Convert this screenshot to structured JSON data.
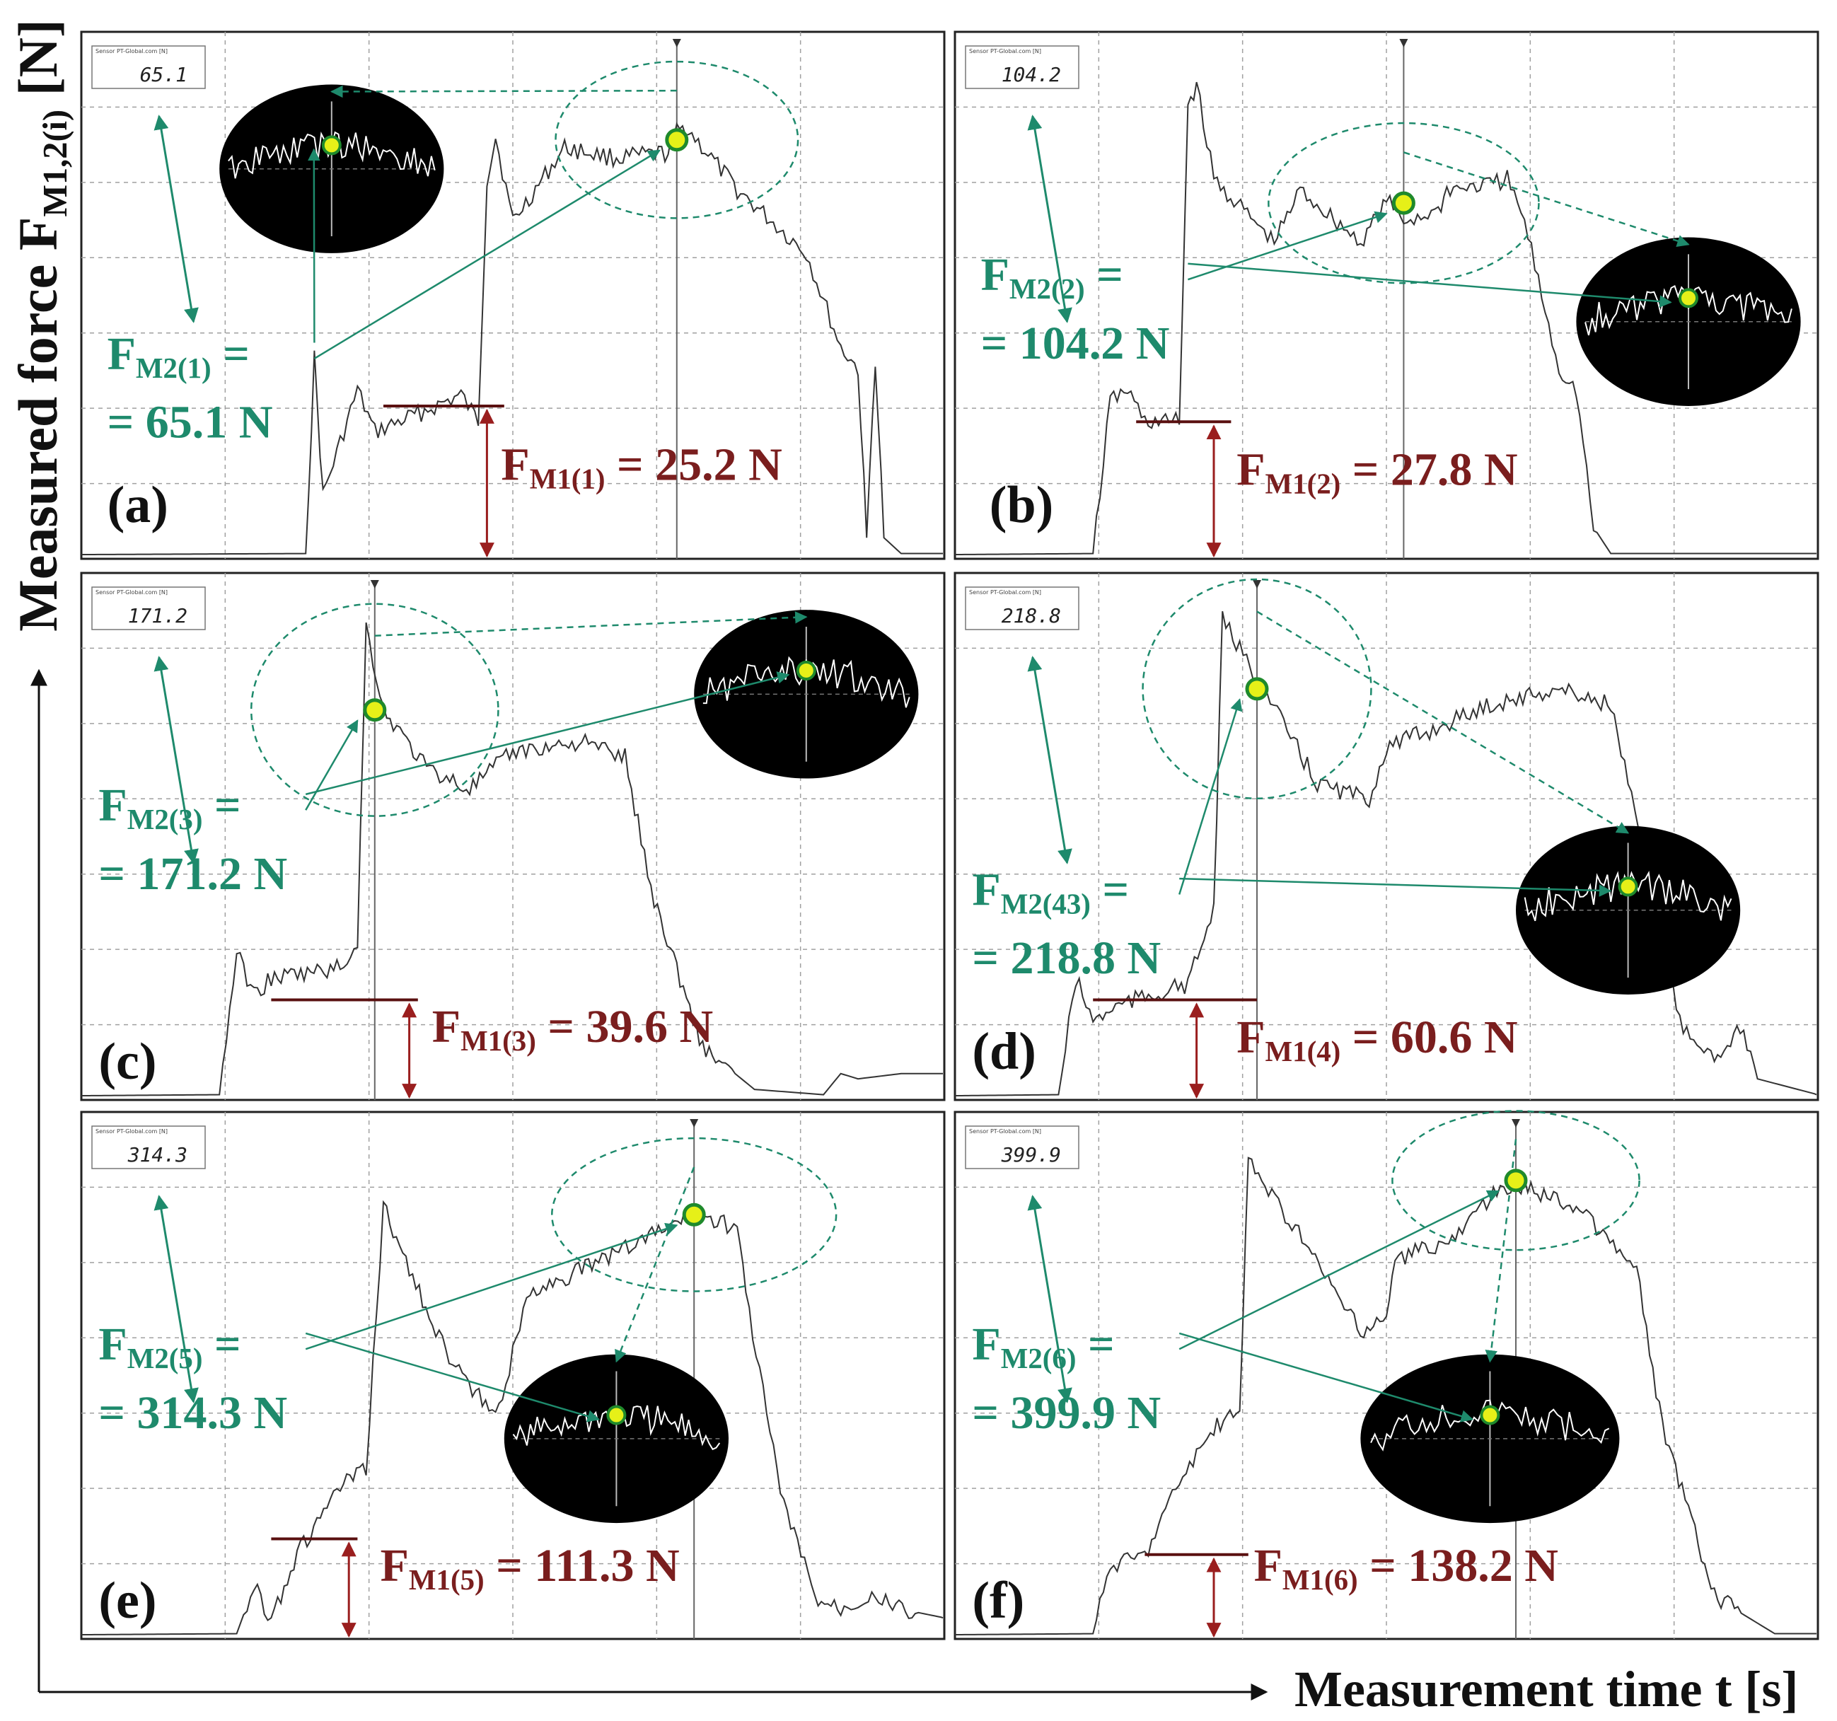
{
  "axes": {
    "ylabel_main": "Measured force F",
    "ylabel_sub": "M1,2(i)",
    "ylabel_unit": " [N]",
    "xlabel": "Measurement time t [s]"
  },
  "colors": {
    "f2": "#1e8a6c",
    "f1": "#7a1e1e",
    "marker_fill": "#e6f018",
    "marker_stroke": "#1f8a2c",
    "trace": "#333333",
    "grid": "#a0a0a0"
  },
  "instrument": {
    "sensor_label": "Sensor PT-Global.com [N]"
  },
  "chart_data": [
    {
      "type": "line",
      "panel": "(a)",
      "readout": "65.1",
      "f2_label": "F",
      "f2_sub": "M2(1)",
      "f2_eq": " =",
      "f2_value": "= 65.1 N",
      "f1_label": "F",
      "f1_sub": "M1(1)",
      "f1_value": " = 25.2 N",
      "FM1": 25.2,
      "FM2": 65.1,
      "unit": "N"
    },
    {
      "type": "line",
      "panel": "(b)",
      "readout": "104.2",
      "f2_label": "F",
      "f2_sub": "M2(2)",
      "f2_eq": " =",
      "f2_value": "= 104.2 N",
      "f1_label": "F",
      "f1_sub": "M1(2)",
      "f1_value": " = 27.8 N",
      "FM1": 27.8,
      "FM2": 104.2,
      "unit": "N"
    },
    {
      "type": "line",
      "panel": "(c)",
      "readout": "171.2",
      "f2_label": "F",
      "f2_sub": "M2(3)",
      "f2_eq": " =",
      "f2_value": "= 171.2 N",
      "f1_label": "F",
      "f1_sub": "M1(3)",
      "f1_value": " = 39.6 N",
      "FM1": 39.6,
      "FM2": 171.2,
      "unit": "N"
    },
    {
      "type": "line",
      "panel": "(d)",
      "readout": "218.8",
      "f2_label": "F",
      "f2_sub": "M2(43)",
      "f2_eq": " =",
      "f2_value": "= 218.8 N",
      "f1_label": "F",
      "f1_sub": "M1(4)",
      "f1_value": " = 60.6 N",
      "FM1": 60.6,
      "FM2": 218.8,
      "unit": "N"
    },
    {
      "type": "line",
      "panel": "(e)",
      "readout": "314.3",
      "f2_label": "F",
      "f2_sub": "M2(5)",
      "f2_eq": " =",
      "f2_value": "= 314.3 N",
      "f1_label": "F",
      "f1_sub": "M1(5)",
      "f1_value": " = 111.3 N",
      "FM1": 111.3,
      "FM2": 314.3,
      "unit": "N"
    },
    {
      "type": "line",
      "panel": "(f)",
      "readout": "399.9",
      "f2_label": "F",
      "f2_sub": "M2(6)",
      "f2_eq": " =",
      "f2_value": "= 399.9 N",
      "f1_label": "F",
      "f1_sub": "M1(6)",
      "f1_value": " = 138.2 N",
      "FM1": 138.2,
      "FM2": 399.9,
      "unit": "N"
    }
  ]
}
